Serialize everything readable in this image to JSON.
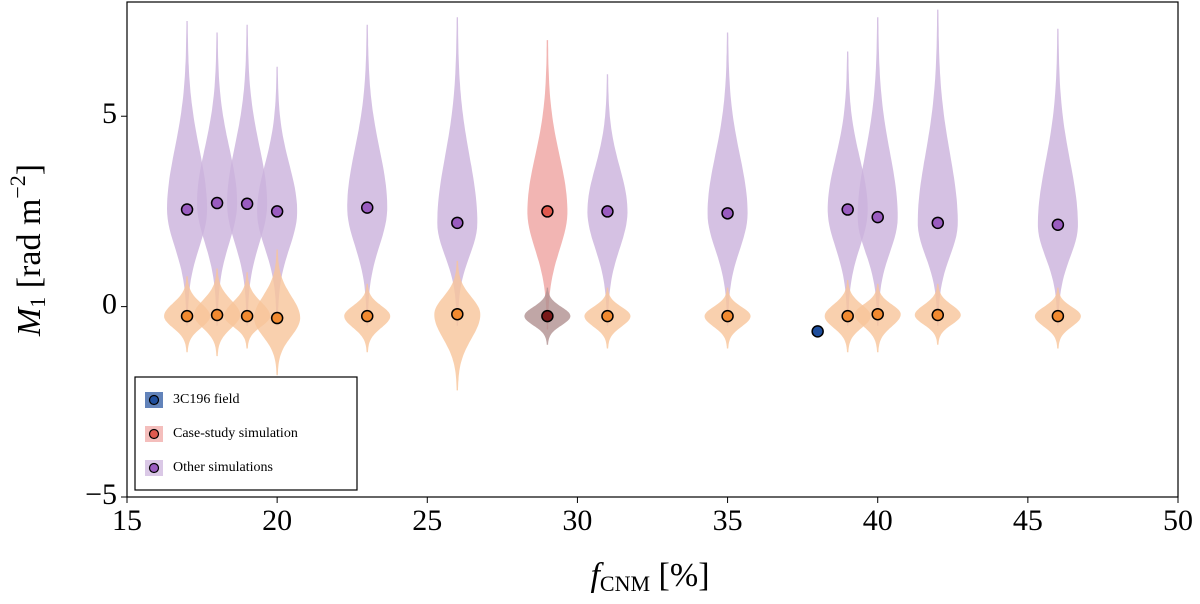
{
  "chart_data": {
    "type": "violin",
    "xlabel": {
      "base": "f",
      "sub": "CNM",
      "rest": " [%]"
    },
    "ylabel": {
      "base": "M",
      "sub": "1",
      "unit": " [rad m",
      "sup": "−2",
      "close": "]"
    },
    "xlim": [
      15,
      50
    ],
    "xticks": [
      15,
      20,
      25,
      30,
      35,
      40,
      45,
      50
    ],
    "ylim": [
      -5,
      8
    ],
    "yticks": [
      {
        "value": -5,
        "label": "−5"
      },
      0,
      5
    ],
    "grid": false,
    "legend": "lower left",
    "series": [
      {
        "name": "3C196 field",
        "color": "#1f4e9c",
        "x": [
          38
        ],
        "values": [
          -0.65
        ]
      },
      {
        "name": "Case-study simulation",
        "color": "#e05a4f",
        "violin_color": "#efa3a0",
        "x": [
          29
        ],
        "values": [
          2.5
        ],
        "range": [
          [
            -0.6,
            7.0
          ]
        ],
        "lower": [
          -0.25
        ],
        "lower_color": "#7a1a1a",
        "lower_violin_color": "#b09090",
        "lower_range": [
          [
            -1.0,
            0.5
          ]
        ]
      },
      {
        "name": "Other simulations",
        "color": "#9a5cc0",
        "violin_color": "#cbb1dc",
        "x": [
          17,
          18,
          19,
          20,
          23,
          26,
          31,
          35,
          39,
          40,
          42,
          46
        ],
        "values": [
          2.55,
          2.72,
          2.7,
          2.5,
          2.6,
          2.2,
          2.5,
          2.45,
          2.55,
          2.35,
          2.2,
          2.15
        ],
        "range": [
          [
            -0.5,
            7.5
          ],
          [
            -0.5,
            7.2
          ],
          [
            -0.5,
            7.4
          ],
          [
            -0.5,
            6.3
          ],
          [
            -0.5,
            7.4
          ],
          [
            -0.5,
            7.6
          ],
          [
            -0.5,
            6.1
          ],
          [
            -0.5,
            7.2
          ],
          [
            -0.5,
            6.7
          ],
          [
            -0.5,
            7.6
          ],
          [
            -0.5,
            7.8
          ],
          [
            -0.5,
            7.3
          ]
        ],
        "lower": [
          -0.25,
          -0.22,
          -0.25,
          -0.3,
          -0.25,
          -0.2,
          -0.25,
          -0.25,
          -0.25,
          -0.2,
          -0.22,
          -0.25
        ],
        "lower_color": "#f28a30",
        "lower_violin_color": "#f8c49a",
        "lower_range": [
          [
            -1.2,
            0.8
          ],
          [
            -1.3,
            1.0
          ],
          [
            -1.1,
            0.9
          ],
          [
            -1.8,
            1.5
          ],
          [
            -1.2,
            0.6
          ],
          [
            -2.2,
            1.2
          ],
          [
            -1.1,
            0.5
          ],
          [
            -1.1,
            0.5
          ],
          [
            -1.2,
            0.7
          ],
          [
            -1.2,
            0.6
          ],
          [
            -1.0,
            0.6
          ],
          [
            -1.1,
            0.5
          ]
        ]
      }
    ]
  }
}
